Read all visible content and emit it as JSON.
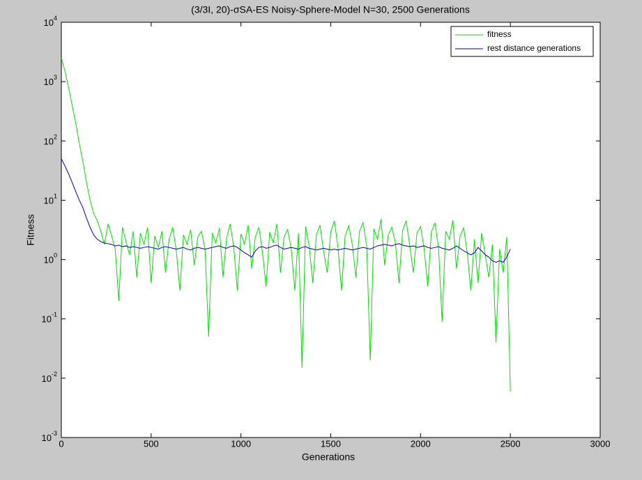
{
  "chart_data": {
    "type": "line",
    "title": "(3/3I, 20)-σSA-ES Noisy-Sphere-Model N=30, 2500 Generations",
    "xlabel": "Generations",
    "ylabel": "Fitness",
    "log_y": true,
    "grid": false,
    "legend": "northeast",
    "xlim": [
      0,
      3000
    ],
    "xticks": [
      0,
      500,
      1000,
      1500,
      2000,
      2500,
      3000
    ],
    "ylim": [
      0.001,
      10000
    ],
    "yticks": [
      {
        "value": 0.001,
        "label": "10",
        "exponent": "-3"
      },
      {
        "value": 0.01,
        "label": "10",
        "exponent": "-2"
      },
      {
        "value": 0.1,
        "label": "10",
        "exponent": "-1"
      },
      {
        "value": 1,
        "label": "10",
        "exponent": "0"
      },
      {
        "value": 10,
        "label": "10",
        "exponent": "1"
      },
      {
        "value": 100,
        "label": "10",
        "exponent": "2"
      },
      {
        "value": 1000,
        "label": "10",
        "exponent": "3"
      },
      {
        "value": 10000,
        "label": "10",
        "exponent": "4"
      }
    ],
    "x": [
      0,
      20,
      40,
      60,
      80,
      100,
      120,
      140,
      160,
      180,
      200,
      220,
      240,
      260,
      280,
      300,
      320,
      340,
      360,
      380,
      400,
      420,
      440,
      460,
      480,
      500,
      520,
      540,
      560,
      580,
      600,
      620,
      640,
      660,
      680,
      700,
      720,
      740,
      760,
      780,
      800,
      820,
      840,
      860,
      880,
      900,
      920,
      940,
      960,
      980,
      1000,
      1020,
      1040,
      1060,
      1080,
      1100,
      1120,
      1140,
      1160,
      1180,
      1200,
      1220,
      1240,
      1260,
      1280,
      1300,
      1320,
      1340,
      1360,
      1380,
      1400,
      1420,
      1440,
      1460,
      1480,
      1500,
      1520,
      1540,
      1560,
      1580,
      1600,
      1620,
      1640,
      1660,
      1680,
      1700,
      1720,
      1740,
      1760,
      1780,
      1800,
      1820,
      1840,
      1860,
      1880,
      1900,
      1920,
      1940,
      1960,
      1980,
      2000,
      2020,
      2040,
      2060,
      2080,
      2100,
      2120,
      2140,
      2160,
      2180,
      2200,
      2220,
      2240,
      2260,
      2280,
      2300,
      2320,
      2340,
      2360,
      2380,
      2400,
      2420,
      2440,
      2460,
      2480,
      2500
    ],
    "series": [
      {
        "name": "fitness",
        "color": "#00e000",
        "values": [
          2500,
          1500,
          800,
          400,
          200,
          90,
          45,
          20,
          10,
          6,
          4.5,
          3,
          1.8,
          4,
          2.5,
          1.5,
          0.2,
          3.5,
          2,
          1.2,
          3,
          0.5,
          2.8,
          1.8,
          3.5,
          0.4,
          2.5,
          1.6,
          3,
          0.6,
          2.2,
          3.5,
          1.4,
          0.3,
          2.6,
          1.8,
          3.2,
          0.8,
          2.4,
          3,
          1.5,
          0.05,
          2.8,
          1.9,
          3.4,
          0.5,
          2.3,
          4,
          1.6,
          0.3,
          2.7,
          1.8,
          3.8,
          0.7,
          2.4,
          3.5,
          1.3,
          0.35,
          2.9,
          1.9,
          4,
          0.6,
          2.4,
          3.2,
          1.5,
          0.3,
          2.8,
          0.015,
          3.6,
          1.7,
          0.4,
          2.6,
          3.8,
          1.4,
          0.6,
          2.9,
          4.5,
          1.6,
          0.3,
          2.5,
          3.7,
          1.8,
          0.5,
          3,
          4.2,
          1.7,
          0.02,
          3.3,
          2.2,
          4.8,
          0.8,
          2.6,
          3.5,
          1.9,
          0.4,
          3.1,
          4.5,
          1.7,
          0.6,
          2.8,
          3.6,
          1.5,
          0.35,
          2.9,
          4.2,
          1.6,
          0.09,
          3,
          2.2,
          4.6,
          0.7,
          2.5,
          3.4,
          1.3,
          0.3,
          2.2,
          0.4,
          2.8,
          1.2,
          0.5,
          1.8,
          0.04,
          1.5,
          0.6,
          2.4,
          0.006
        ]
      },
      {
        "name": "rest distance generations",
        "color": "#0000b0",
        "values": [
          50,
          38,
          28,
          20,
          14,
          10,
          7.5,
          5,
          3.5,
          2.6,
          2.2,
          2,
          1.9,
          1.85,
          1.8,
          1.7,
          1.75,
          1.65,
          1.7,
          1.6,
          1.65,
          1.6,
          1.55,
          1.6,
          1.65,
          1.6,
          1.55,
          1.5,
          1.6,
          1.65,
          1.6,
          1.55,
          1.5,
          1.55,
          1.6,
          1.5,
          1.45,
          1.55,
          1.6,
          1.55,
          1.5,
          1.55,
          1.6,
          1.65,
          1.7,
          1.6,
          1.55,
          1.65,
          1.7,
          1.6,
          1.45,
          1.3,
          1.2,
          1.1,
          1.4,
          1.6,
          1.65,
          1.55,
          1.6,
          1.7,
          1.75,
          1.6,
          1.5,
          1.55,
          1.6,
          1.55,
          1.5,
          1.6,
          1.65,
          1.55,
          1.5,
          1.45,
          1.5,
          1.55,
          1.5,
          1.45,
          1.5,
          1.45,
          1.5,
          1.55,
          1.5,
          1.45,
          1.5,
          1.55,
          1.6,
          1.55,
          1.5,
          1.6,
          1.7,
          1.75,
          1.8,
          1.75,
          1.7,
          1.8,
          1.85,
          1.75,
          1.7,
          1.65,
          1.7,
          1.6,
          1.65,
          1.7,
          1.6,
          1.55,
          1.6,
          1.65,
          1.55,
          1.5,
          1.45,
          1.55,
          1.7,
          1.55,
          1.4,
          1.3,
          1.2,
          1.3,
          1.6,
          1.4,
          1.2,
          1.1,
          0.95,
          0.9,
          0.95,
          0.9,
          1.1,
          1.5
        ]
      }
    ]
  }
}
